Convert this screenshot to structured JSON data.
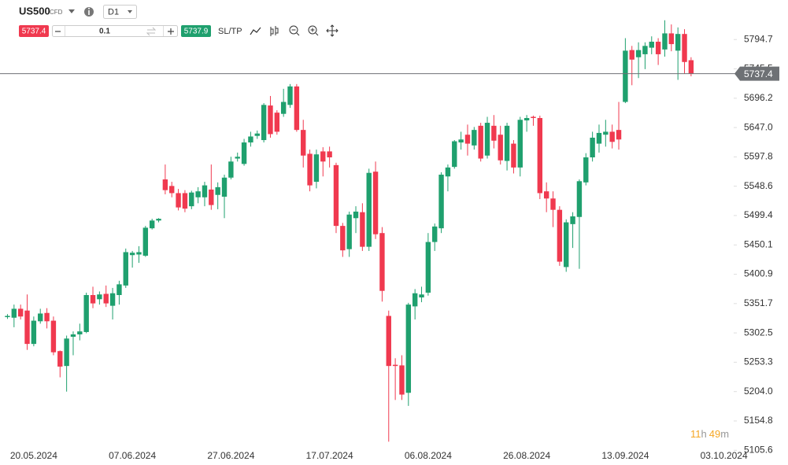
{
  "toolbar": {
    "symbol": "US500",
    "symbol_type": "CFD",
    "timeframe": "D1",
    "bid": "5737.4",
    "volume": "0.1",
    "ask": "5737.9",
    "sltp": "SL/TP"
  },
  "countdown": [
    "11",
    "h",
    "49",
    "m"
  ],
  "chart_data": {
    "type": "candlestick",
    "up_color": "#1fa06e",
    "down_color": "#f0394f",
    "current_price": 5737.4,
    "current_price_color": "#6e7175",
    "ylim": [
      5102,
      5861
    ],
    "yticks": [
      5105.6,
      5154.8,
      {
        "value": 5204,
        "label": "5204.0"
      },
      5253.3,
      5302.5,
      5351.7,
      5400.9,
      5450.1,
      5499.4,
      5548.6,
      5597.8,
      {
        "value": 5647,
        "label": "5647.0"
      },
      5696.2,
      5745.5,
      5794.7
    ],
    "grid": false,
    "categories": [
      null,
      null,
      null,
      null,
      "20.05.2024",
      null,
      null,
      null,
      null,
      null,
      null,
      null,
      null,
      null,
      null,
      null,
      null,
      null,
      null,
      "07.06.2024",
      null,
      null,
      null,
      null,
      null,
      null,
      null,
      null,
      null,
      null,
      null,
      null,
      null,
      null,
      "27.06.2024",
      null,
      null,
      null,
      null,
      null,
      null,
      null,
      null,
      null,
      null,
      null,
      null,
      null,
      null,
      "17.07.2024",
      null,
      null,
      null,
      null,
      null,
      null,
      null,
      null,
      null,
      null,
      null,
      null,
      null,
      null,
      "06.08.2024",
      null,
      null,
      null,
      null,
      null,
      null,
      null,
      null,
      null,
      null,
      null,
      null,
      null,
      null,
      "26.08.2024",
      null,
      null,
      null,
      null,
      null,
      null,
      null,
      null,
      null,
      null,
      null,
      null,
      null,
      null,
      "13.09.2024",
      null,
      null,
      null,
      null,
      null,
      null,
      null,
      null,
      null,
      null,
      null,
      null,
      null,
      null,
      "03.10.2024"
    ],
    "open": [
      5329,
      5328,
      5343,
      5340,
      5284,
      5322,
      5336,
      5323,
      5272,
      5247,
      5296,
      5300,
      5304,
      5366,
      5359,
      5368,
      5348,
      5366,
      5382,
      5433,
      5434,
      5432,
      5478,
      5491,
      5560,
      5549,
      5537,
      5537,
      5515,
      5530,
      5530,
      5543,
      5534,
      5531,
      5563,
      5595,
      5586,
      5622,
      5633,
      5626,
      5684,
      5672,
      5670,
      5685,
      5716,
      5643,
      5603,
      5556,
      5607,
      5607,
      5584,
      5482,
      5443,
      5495,
      5505,
      5447,
      5573,
      5470,
      5331,
      5249,
      5248,
      5202,
      5347,
      5362,
      5370,
      5455,
      5478,
      5565,
      5581,
      5622,
      5635,
      5617,
      5650,
      5600,
      5650,
      5635,
      5591,
      5620,
      5580,
      5659,
      5665,
      5663,
      5540,
      5528,
      5509,
      5413,
      5485,
      5497,
      5555,
      5597,
      5620,
      5635,
      5640,
      5643,
      5690,
      5777,
      5765,
      5770,
      5781,
      5791,
      5778,
      5805,
      5776,
      5804,
      5760,
      null,
      null,
      null,
      null,
      null
    ],
    "high": [
      5334,
      5350,
      5350,
      5367,
      5330,
      5343,
      5344,
      5330,
      5273,
      5298,
      5305,
      5318,
      5370,
      5380,
      5372,
      5382,
      5378,
      5390,
      5444,
      5440,
      5448,
      5482,
      5494,
      5495,
      5585,
      5556,
      5544,
      5542,
      5541,
      5547,
      5556,
      5585,
      5555,
      5568,
      5598,
      5605,
      5628,
      5640,
      5642,
      5688,
      5700,
      5676,
      5712,
      5720,
      5720,
      5660,
      5610,
      5610,
      5614,
      5615,
      5588,
      5487,
      5506,
      5515,
      5520,
      5578,
      5590,
      5480,
      5340,
      5260,
      5265,
      5353,
      5376,
      5380,
      5470,
      5486,
      5572,
      5585,
      5626,
      5640,
      5652,
      5648,
      5655,
      5665,
      5668,
      5650,
      5655,
      5626,
      5665,
      5668,
      5667,
      5667,
      5555,
      5540,
      5515,
      5493,
      5505,
      5560,
      5604,
      5640,
      5652,
      5660,
      5652,
      5690,
      5797,
      5784,
      5790,
      5790,
      5800,
      5797,
      5827,
      5820,
      5815,
      5812,
      5765,
      null,
      null,
      null,
      null,
      null
    ],
    "low": [
      5326,
      5312,
      5325,
      5274,
      5280,
      5318,
      5310,
      5265,
      5228,
      5204,
      5265,
      5290,
      5302,
      5344,
      5350,
      5346,
      5325,
      5350,
      5378,
      5412,
      5420,
      5430,
      5476,
      5488,
      5535,
      5530,
      5508,
      5505,
      5510,
      5520,
      5515,
      5509,
      5510,
      5495,
      5560,
      5590,
      5583,
      5615,
      5628,
      5622,
      5630,
      5635,
      5665,
      5680,
      5640,
      5580,
      5540,
      5545,
      5565,
      5580,
      5470,
      5430,
      5430,
      5470,
      5440,
      5440,
      5460,
      5355,
      5120,
      5190,
      5190,
      5180,
      5325,
      5354,
      5365,
      5440,
      5470,
      5540,
      5578,
      5610,
      5600,
      5610,
      5590,
      5595,
      5612,
      5585,
      5575,
      5570,
      5565,
      5640,
      5650,
      5527,
      5505,
      5480,
      5415,
      5405,
      5445,
      5410,
      5550,
      5590,
      5605,
      5615,
      5612,
      5610,
      5688,
      5718,
      5730,
      5745,
      5770,
      5752,
      5766,
      5775,
      5727,
      5737,
      5733,
      null,
      null,
      null,
      null,
      null
    ],
    "close": [
      5331,
      5343,
      5330,
      5284,
      5323,
      5335,
      5322,
      5270,
      5246,
      5293,
      5300,
      5305,
      5366,
      5352,
      5367,
      5352,
      5369,
      5384,
      5438,
      5437,
      5438,
      5479,
      5491,
      5494,
      5542,
      5537,
      5513,
      5511,
      5538,
      5540,
      5550,
      5517,
      5547,
      5563,
      5590,
      5598,
      5622,
      5632,
      5637,
      5685,
      5636,
      5640,
      5690,
      5716,
      5643,
      5600,
      5550,
      5602,
      5590,
      5597,
      5482,
      5441,
      5501,
      5506,
      5447,
      5571,
      5468,
      5373,
      5247,
      5247,
      5199,
      5350,
      5369,
      5367,
      5455,
      5481,
      5568,
      5580,
      5624,
      5627,
      5620,
      5643,
      5595,
      5655,
      5625,
      5592,
      5650,
      5580,
      5660,
      5663,
      5663,
      5537,
      5528,
      5509,
      5422,
      5488,
      5498,
      5557,
      5597,
      5630,
      5638,
      5640,
      5623,
      5627,
      5776,
      5761,
      5777,
      5784,
      5791,
      5770,
      5805,
      5787,
      5804,
      5757,
      5737.4,
      null,
      null,
      null,
      null,
      null
    ]
  }
}
